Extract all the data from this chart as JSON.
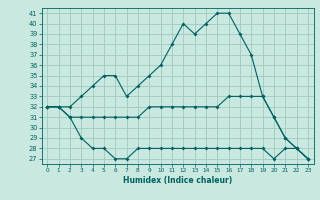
{
  "xlabel": "Humidex (Indice chaleur)",
  "bg_color": "#c8e8e0",
  "grid_color": "#a0c8c0",
  "line_color": "#006060",
  "xlim": [
    -0.5,
    23.5
  ],
  "ylim": [
    26.5,
    41.5
  ],
  "yticks": [
    27,
    28,
    29,
    30,
    31,
    32,
    33,
    34,
    35,
    36,
    37,
    38,
    39,
    40,
    41
  ],
  "xticks": [
    0,
    1,
    2,
    3,
    4,
    5,
    6,
    7,
    8,
    9,
    10,
    11,
    12,
    13,
    14,
    15,
    16,
    17,
    18,
    19,
    20,
    21,
    22,
    23
  ],
  "max_values": [
    32,
    32,
    32,
    33,
    34,
    35,
    35,
    33,
    34,
    35,
    36,
    38,
    40,
    39,
    40,
    41,
    41,
    39,
    37,
    33,
    31,
    29,
    28,
    27
  ],
  "avg_values": [
    32,
    32,
    31,
    31,
    31,
    31,
    31,
    31,
    31,
    32,
    32,
    32,
    32,
    32,
    32,
    32,
    33,
    33,
    33,
    33,
    31,
    29,
    28,
    27
  ],
  "min_values": [
    32,
    32,
    31,
    29,
    28,
    28,
    27,
    27,
    28,
    28,
    28,
    28,
    28,
    28,
    28,
    28,
    28,
    28,
    28,
    28,
    27,
    28,
    28,
    27
  ]
}
